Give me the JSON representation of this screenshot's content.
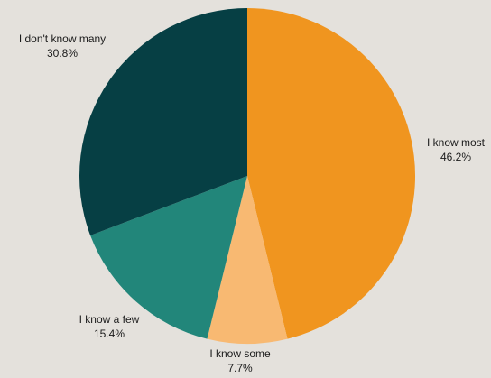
{
  "chart_data": {
    "type": "pie",
    "start_angle": "12 o'clock",
    "direction": "clockwise",
    "slices": [
      {
        "label": "I know most",
        "value": 46.2,
        "value_label": "46.2%",
        "color": "#f0951f"
      },
      {
        "label": "I know some",
        "value": 7.7,
        "value_label": "7.7%",
        "color": "#f8b972"
      },
      {
        "label": "I know a few",
        "value": 15.4,
        "value_label": "15.4%",
        "color": "#22867a"
      },
      {
        "label": "I don't know many",
        "value": 30.8,
        "value_label": "30.8%",
        "color": "#063f44"
      }
    ]
  }
}
